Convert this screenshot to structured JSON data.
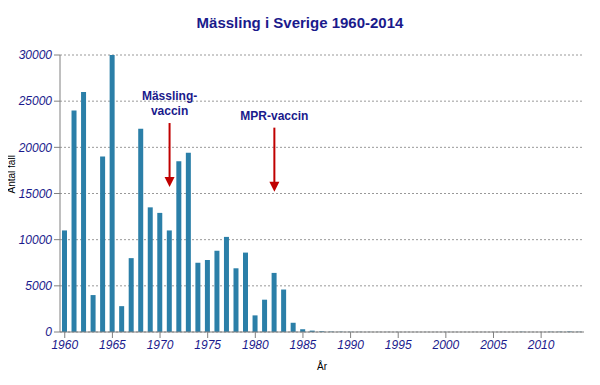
{
  "chart_data": {
    "type": "bar",
    "title": "Mässling i Sverige 1960-2014",
    "x_label": "År",
    "y_label": "Antal fall",
    "x": [
      1960,
      1961,
      1962,
      1963,
      1964,
      1965,
      1966,
      1967,
      1968,
      1969,
      1970,
      1971,
      1972,
      1973,
      1974,
      1975,
      1976,
      1977,
      1978,
      1979,
      1980,
      1981,
      1982,
      1983,
      1984,
      1985,
      1986,
      1987,
      1988,
      1989,
      1990,
      1991,
      1992,
      1993,
      1994,
      1995,
      1996,
      1997,
      1998,
      1999,
      2000,
      2001,
      2002,
      2003,
      2004,
      2005,
      2006,
      2007,
      2008,
      2009,
      2010,
      2011,
      2012,
      2013,
      2014
    ],
    "values": [
      11000,
      24000,
      26000,
      4000,
      19000,
      30000,
      2800,
      8000,
      22000,
      13500,
      12900,
      11000,
      18500,
      19400,
      7500,
      7800,
      8800,
      10300,
      6900,
      8600,
      1800,
      3500,
      6400,
      4600,
      1000,
      300,
      150,
      80,
      40,
      30,
      20,
      15,
      10,
      10,
      10,
      10,
      5,
      5,
      5,
      5,
      10,
      5,
      5,
      10,
      5,
      5,
      10,
      5,
      25,
      5,
      5,
      25,
      30,
      50,
      25
    ],
    "color": "#2b7fa8",
    "xlim": [
      1959.5,
      2014.5
    ],
    "xticks": [
      1960,
      1965,
      1970,
      1975,
      1980,
      1985,
      1990,
      1995,
      2000,
      2005,
      2010
    ],
    "ylim": [
      0,
      30000
    ],
    "yticks": [
      0,
      5000,
      10000,
      15000,
      20000,
      25000,
      30000
    ],
    "grid": true,
    "annotations": [
      {
        "text": [
          "Mässling-",
          "vaccin"
        ],
        "x": 1971,
        "y": 15700
      },
      {
        "text": [
          "MPR-vaccin"
        ],
        "x": 1982,
        "y": 15200
      }
    ]
  }
}
